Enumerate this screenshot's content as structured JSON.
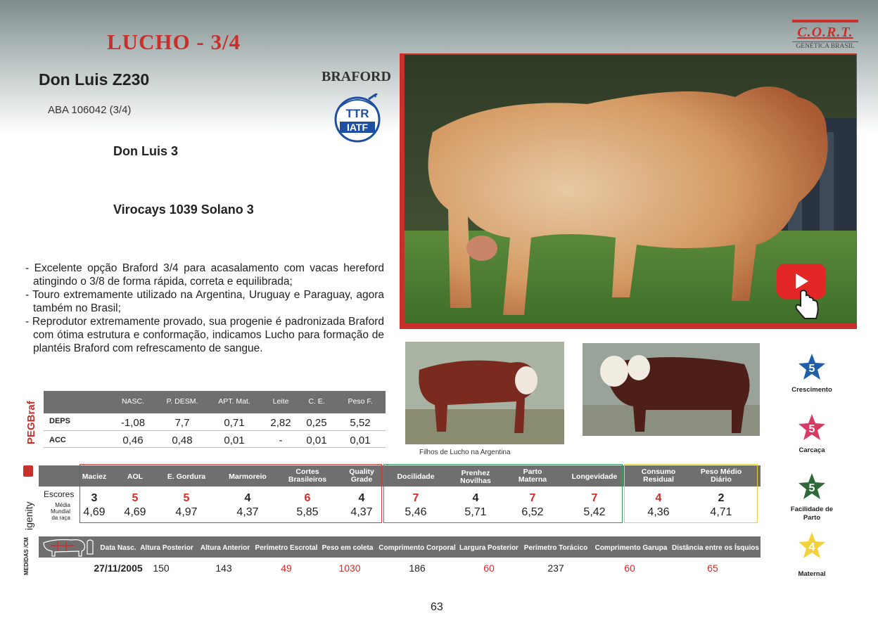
{
  "header": {
    "title": "LUCHO - 3/4",
    "animal_name": "Don Luis  Z230",
    "registration": "ABA 106042  (3/4)",
    "sire": "Don Luis 3",
    "dam": "Virocays 1039 Solano 3",
    "breed": "BRAFORD",
    "badge_top": "TTR",
    "badge_bottom": "IATF"
  },
  "logo": {
    "name": "C.O.R.T.",
    "subtitle": "GENÉTICA BRASIL"
  },
  "description": [
    "- Excelente opção Braford 3/4 para acasalamento com vacas hereford atingindo o 3/8 de forma rápida, correta e equilibrada;",
    "- Touro extremamente utilizado na Argentina, Uruguay e Paraguay, agora também no Brasil;",
    "- Reprodutor extremamente provado, sua progenie é padronizada Braford com ótima estrutura e conformação, indicamos Lucho para formação de plantéis Braford com refrescamento de sangue."
  ],
  "photos": {
    "caption": "Filhos de Lucho na Argentina"
  },
  "ratings": [
    {
      "value": "5",
      "label": "Crescimento",
      "color": "#1f5fa8"
    },
    {
      "value": "5",
      "label": "Carcaça",
      "color": "#d93a63"
    },
    {
      "value": "5",
      "label": "Facilidade de Parto",
      "color": "#2f6b3a"
    },
    {
      "value": "4",
      "label": "Maternal",
      "color": "#f2d23a"
    }
  ],
  "peg": {
    "side_label": "PEGBraf",
    "headers": [
      "NASC.",
      "P. DESM.",
      "APT. Mat.",
      "Leite",
      "C. E.",
      "Peso F."
    ],
    "deps_label": "DEPS",
    "acc_label": "ACC",
    "deps": [
      "-1,08",
      "7,7",
      "0,71",
      "2,82",
      "0,25",
      "5,52"
    ],
    "acc": [
      "0,46",
      "0,48",
      "0,01",
      "-",
      "0,01",
      "0,01"
    ]
  },
  "igenity": {
    "side_label": "igenity",
    "scores_label": "Escores",
    "avg_label_line1": "Média Mundial",
    "avg_label_line2": "da raça",
    "headers": [
      [
        "Maciez"
      ],
      [
        "AOL"
      ],
      [
        "E. Gordura"
      ],
      [
        "Marmoreio"
      ],
      [
        "Cortes",
        "Brasileiros"
      ],
      [
        "Quality",
        "Grade"
      ],
      [
        "Docilidade"
      ],
      [
        "Prenhez",
        "Novilhas"
      ],
      [
        "Parto",
        "Materna"
      ],
      [
        "Longevidade"
      ],
      [
        "Consumo",
        "Residual"
      ],
      [
        "Peso Médio",
        "Diário"
      ]
    ],
    "scores": [
      "3",
      "5",
      "5",
      "4",
      "6",
      "4",
      "7",
      "4",
      "7",
      "7",
      "4",
      "2"
    ],
    "score_colors": [
      "#222222",
      "#d42a2a",
      "#d42a2a",
      "#222222",
      "#d42a2a",
      "#222222",
      "#d42a2a",
      "#222222",
      "#d42a2a",
      "#d42a2a",
      "#d42a2a",
      "#222222"
    ],
    "averages": [
      "4,69",
      "4,69",
      "4,97",
      "4,37",
      "5,85",
      "4,37",
      "5,46",
      "5,71",
      "6,52",
      "5,42",
      "4,36",
      "4,71"
    ],
    "group_colors": [
      "#d83a3a",
      "#2fa05a",
      "#e5d23a"
    ]
  },
  "medidas": {
    "side_label": "MEDIDAS /CM",
    "headers": [
      "Data  Nasc.",
      "Altura Posterior",
      "Altura Anterior",
      "Perímetro Escrotal",
      "Peso em coleta",
      "Comprimento Corporal",
      "Largura Posterior",
      "Perímetro Torácico",
      "Comprimento Garupa",
      "Distância entre os Ísquios"
    ],
    "values": [
      "27/11/2005",
      "150",
      "143",
      "49",
      "1030",
      "186",
      "60",
      "237",
      "60",
      "65"
    ],
    "value_colors": [
      "#222222",
      "#222222",
      "#222222",
      "#d42a2a",
      "#d42a2a",
      "#222222",
      "#d42a2a",
      "#222222",
      "#d42a2a",
      "#d42a2a"
    ]
  },
  "page_number": "63"
}
